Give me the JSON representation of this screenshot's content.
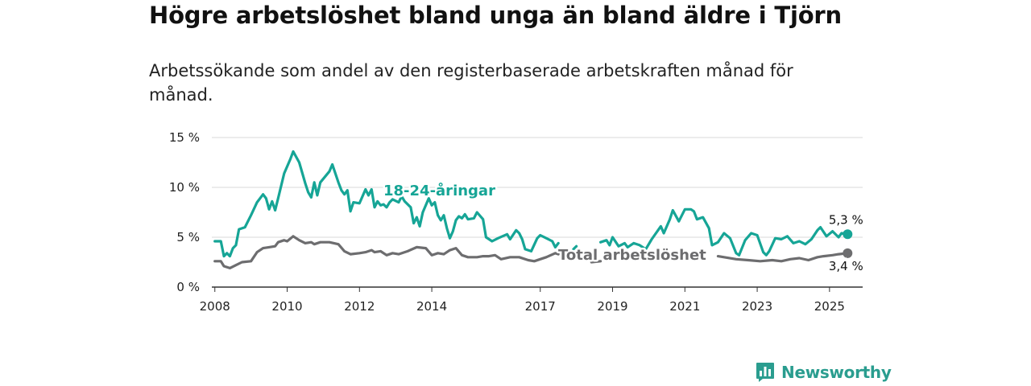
{
  "title": "Högre arbetslöshet bland unga än bland äldre i Tjörn",
  "subtitle": "Arbetssökande som andel av den registerbaserade arbetskraften månad för månad.",
  "brand": {
    "name": "Newsworthy",
    "color": "#2a9d8f"
  },
  "chart_data": {
    "type": "line",
    "title": "",
    "xlabel": "",
    "ylabel": "",
    "x_ticks": [
      "2008",
      "2010",
      "2012",
      "2014",
      "2017",
      "2019",
      "2021",
      "2023",
      "2025"
    ],
    "y_ticks": [
      "0 %",
      "5 %",
      "10 %",
      "15 %"
    ],
    "ylim": [
      0,
      15
    ],
    "xlim": [
      "2007-12",
      "2025-12"
    ],
    "grid": true,
    "series": [
      {
        "name": "18-24-åringar",
        "color": "#16a596",
        "end_label": "5,3 %",
        "points": [
          [
            "2008-01",
            4.6
          ],
          [
            "2008-03",
            4.6
          ],
          [
            "2008-04",
            3.1
          ],
          [
            "2008-05",
            3.4
          ],
          [
            "2008-06",
            3.1
          ],
          [
            "2008-07",
            3.9
          ],
          [
            "2008-08",
            4.2
          ],
          [
            "2008-09",
            5.8
          ],
          [
            "2008-11",
            6.0
          ],
          [
            "2009-01",
            7.2
          ],
          [
            "2009-03",
            8.5
          ],
          [
            "2009-05",
            9.3
          ],
          [
            "2009-06",
            8.9
          ],
          [
            "2009-07",
            7.8
          ],
          [
            "2009-08",
            8.6
          ],
          [
            "2009-09",
            7.7
          ],
          [
            "2009-10",
            8.9
          ],
          [
            "2009-12",
            11.4
          ],
          [
            "2010-02",
            12.8
          ],
          [
            "2010-03",
            13.6
          ],
          [
            "2010-05",
            12.5
          ],
          [
            "2010-07",
            10.4
          ],
          [
            "2010-08",
            9.5
          ],
          [
            "2010-09",
            9.0
          ],
          [
            "2010-10",
            10.5
          ],
          [
            "2010-11",
            9.2
          ],
          [
            "2010-12",
            10.5
          ],
          [
            "2011-03",
            11.6
          ],
          [
            "2011-04",
            12.3
          ],
          [
            "2011-06",
            10.5
          ],
          [
            "2011-07",
            9.7
          ],
          [
            "2011-08",
            9.3
          ],
          [
            "2011-09",
            9.7
          ],
          [
            "2011-10",
            7.6
          ],
          [
            "2011-11",
            8.5
          ],
          [
            "2012-01",
            8.4
          ],
          [
            "2012-03",
            9.8
          ],
          [
            "2012-04",
            9.2
          ],
          [
            "2012-05",
            9.8
          ],
          [
            "2012-06",
            8.0
          ],
          [
            "2012-07",
            8.6
          ],
          [
            "2012-08",
            8.2
          ],
          [
            "2012-09",
            8.3
          ],
          [
            "2012-10",
            8.0
          ],
          [
            "2012-11",
            8.5
          ],
          [
            "2012-12",
            8.8
          ],
          [
            "2013-02",
            8.5
          ],
          [
            "2013-03",
            9.1
          ],
          [
            "2013-04",
            8.6
          ],
          [
            "2013-06",
            8.0
          ],
          [
            "2013-07",
            6.4
          ],
          [
            "2013-08",
            7.0
          ],
          [
            "2013-09",
            6.1
          ],
          [
            "2013-10",
            7.5
          ],
          [
            "2013-12",
            8.9
          ],
          [
            "2014-01",
            8.2
          ],
          [
            "2014-02",
            8.5
          ],
          [
            "2014-03",
            7.2
          ],
          [
            "2014-04",
            6.7
          ],
          [
            "2014-05",
            7.2
          ],
          [
            "2014-06",
            5.9
          ],
          [
            "2014-07",
            4.9
          ],
          [
            "2014-08",
            5.6
          ],
          [
            "2014-09",
            6.7
          ],
          [
            "2014-10",
            7.1
          ],
          [
            "2014-11",
            6.9
          ],
          [
            "2014-12",
            7.3
          ],
          [
            "2015-01",
            6.8
          ],
          [
            "2015-03",
            6.9
          ],
          [
            "2015-04",
            7.5
          ],
          [
            "2015-06",
            6.8
          ],
          [
            "2015-07",
            5.0
          ],
          [
            "2015-09",
            4.6
          ],
          [
            "2015-11",
            4.9
          ],
          [
            "2016-02",
            5.3
          ],
          [
            "2016-03",
            4.8
          ],
          [
            "2016-05",
            5.7
          ],
          [
            "2016-06",
            5.4
          ],
          [
            "2016-07",
            4.8
          ],
          [
            "2016-08",
            3.8
          ],
          [
            "2016-10",
            3.6
          ],
          [
            "2016-12",
            4.9
          ],
          [
            "2017-01",
            5.2
          ],
          [
            "2017-03",
            4.9
          ],
          [
            "2017-05",
            4.6
          ],
          [
            "2017-06",
            4.0
          ],
          [
            "2017-07",
            4.4
          ],
          null,
          [
            "2017-12",
            3.8
          ],
          [
            "2018-01",
            4.1
          ],
          null,
          [
            "2018-09",
            4.5
          ],
          [
            "2018-11",
            4.7
          ],
          [
            "2018-12",
            4.2
          ],
          [
            "2019-01",
            5.0
          ],
          [
            "2019-03",
            4.1
          ],
          [
            "2019-05",
            4.4
          ],
          [
            "2019-06",
            4.0
          ],
          [
            "2019-08",
            4.4
          ],
          [
            "2019-10",
            4.2
          ],
          [
            "2019-12",
            3.8
          ],
          [
            "2020-02",
            4.8
          ],
          [
            "2020-05",
            6.1
          ],
          [
            "2020-06",
            5.4
          ],
          [
            "2020-08",
            6.8
          ],
          [
            "2020-09",
            7.7
          ],
          [
            "2020-11",
            6.6
          ],
          [
            "2021-01",
            7.8
          ],
          [
            "2021-03",
            7.8
          ],
          [
            "2021-04",
            7.6
          ],
          [
            "2021-05",
            6.8
          ],
          [
            "2021-07",
            7.0
          ],
          [
            "2021-09",
            5.9
          ],
          [
            "2021-10",
            4.2
          ],
          [
            "2021-12",
            4.5
          ],
          [
            "2022-02",
            5.4
          ],
          [
            "2022-04",
            4.9
          ],
          [
            "2022-06",
            3.4
          ],
          [
            "2022-07",
            3.2
          ],
          [
            "2022-09",
            4.7
          ],
          [
            "2022-11",
            5.4
          ],
          [
            "2023-01",
            5.2
          ],
          [
            "2023-03",
            3.5
          ],
          [
            "2023-04",
            3.2
          ],
          [
            "2023-05",
            3.6
          ],
          [
            "2023-07",
            4.9
          ],
          [
            "2023-09",
            4.8
          ],
          [
            "2023-11",
            5.1
          ],
          [
            "2024-01",
            4.4
          ],
          [
            "2024-03",
            4.6
          ],
          [
            "2024-05",
            4.3
          ],
          [
            "2024-07",
            4.8
          ],
          [
            "2024-09",
            5.7
          ],
          [
            "2024-10",
            6.0
          ],
          [
            "2024-12",
            5.1
          ],
          [
            "2025-02",
            5.6
          ],
          [
            "2025-04",
            5.0
          ],
          [
            "2025-05",
            5.4
          ],
          [
            "2025-07",
            5.3
          ]
        ]
      },
      {
        "name": "Total arbetslöshet",
        "color": "#6d6d6f",
        "end_label": "3,4 %",
        "points": [
          [
            "2008-01",
            2.6
          ],
          [
            "2008-03",
            2.6
          ],
          [
            "2008-04",
            2.1
          ],
          [
            "2008-06",
            1.9
          ],
          [
            "2008-08",
            2.2
          ],
          [
            "2008-10",
            2.5
          ],
          [
            "2009-01",
            2.6
          ],
          [
            "2009-03",
            3.5
          ],
          [
            "2009-05",
            3.9
          ],
          [
            "2009-07",
            4.0
          ],
          [
            "2009-09",
            4.1
          ],
          [
            "2009-10",
            4.5
          ],
          [
            "2009-12",
            4.7
          ],
          [
            "2010-01",
            4.6
          ],
          [
            "2010-03",
            5.1
          ],
          [
            "2010-05",
            4.7
          ],
          [
            "2010-07",
            4.4
          ],
          [
            "2010-09",
            4.5
          ],
          [
            "2010-10",
            4.3
          ],
          [
            "2010-12",
            4.5
          ],
          [
            "2011-03",
            4.5
          ],
          [
            "2011-06",
            4.3
          ],
          [
            "2011-08",
            3.6
          ],
          [
            "2011-10",
            3.3
          ],
          [
            "2012-01",
            3.4
          ],
          [
            "2012-03",
            3.5
          ],
          [
            "2012-05",
            3.7
          ],
          [
            "2012-06",
            3.5
          ],
          [
            "2012-08",
            3.6
          ],
          [
            "2012-10",
            3.2
          ],
          [
            "2012-12",
            3.4
          ],
          [
            "2013-02",
            3.3
          ],
          [
            "2013-05",
            3.6
          ],
          [
            "2013-08",
            4.0
          ],
          [
            "2013-11",
            3.9
          ],
          [
            "2014-01",
            3.2
          ],
          [
            "2014-02",
            3.3
          ],
          [
            "2014-03",
            3.4
          ],
          [
            "2014-05",
            3.3
          ],
          [
            "2014-07",
            3.7
          ],
          [
            "2014-09",
            3.9
          ],
          [
            "2014-11",
            3.2
          ],
          [
            "2015-01",
            3.0
          ],
          [
            "2015-04",
            3.0
          ],
          [
            "2015-06",
            3.1
          ],
          [
            "2015-08",
            3.1
          ],
          [
            "2015-10",
            3.2
          ],
          [
            "2015-12",
            2.8
          ],
          [
            "2016-03",
            3.0
          ],
          [
            "2016-06",
            3.0
          ],
          [
            "2016-09",
            2.7
          ],
          [
            "2016-11",
            2.6
          ],
          [
            "2017-01",
            2.8
          ],
          [
            "2017-03",
            3.0
          ],
          [
            "2017-06",
            3.4
          ],
          [
            "2017-07",
            3.3
          ],
          null,
          [
            "2018-06",
            2.5
          ],
          [
            "2018-09",
            2.6
          ],
          null,
          [
            "2021-12",
            3.1
          ],
          [
            "2022-02",
            3.0
          ],
          [
            "2022-06",
            2.8
          ],
          [
            "2022-10",
            2.7
          ],
          [
            "2023-02",
            2.6
          ],
          [
            "2023-06",
            2.7
          ],
          [
            "2023-09",
            2.6
          ],
          [
            "2023-12",
            2.8
          ],
          [
            "2024-03",
            2.9
          ],
          [
            "2024-06",
            2.7
          ],
          [
            "2024-09",
            3.0
          ],
          [
            "2024-11",
            3.1
          ],
          [
            "2025-02",
            3.2
          ],
          [
            "2025-04",
            3.3
          ],
          [
            "2025-07",
            3.4
          ]
        ]
      }
    ]
  }
}
